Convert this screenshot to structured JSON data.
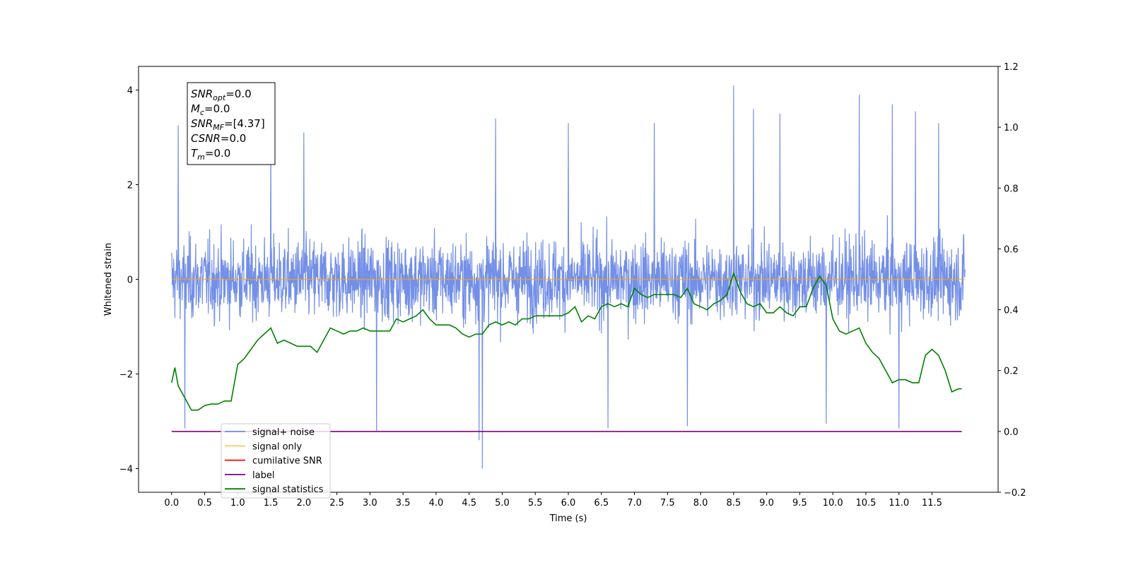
{
  "chart_data": {
    "type": "line",
    "xlabel": "Time (s)",
    "ylabel": "Whitened strain",
    "xlim": [
      -0.5,
      12.5
    ],
    "ylim": [
      -4.5,
      4.5
    ],
    "y2lim": [
      -0.2,
      1.2
    ],
    "x_ticks": [
      0.0,
      0.5,
      1.0,
      1.5,
      2.0,
      2.5,
      3.0,
      3.5,
      4.0,
      4.5,
      5.0,
      5.5,
      6.0,
      6.5,
      7.0,
      7.5,
      8.0,
      8.5,
      9.0,
      9.5,
      10.0,
      10.5,
      11.0,
      11.5
    ],
    "x_tick_labels": [
      "0.0",
      "0.5",
      "1.0",
      "1.5",
      "2.0",
      "2.5",
      "3.0",
      "3.5",
      "4.0",
      "4.5",
      "5.0",
      "5.5",
      "6.0",
      "6.5",
      "7.0",
      "7.5",
      "8.0",
      "8.5",
      "9.0",
      "9.5",
      "10.0",
      "10.5",
      "11.0",
      "11.5"
    ],
    "y_ticks": [
      -4,
      -2,
      0,
      2,
      4
    ],
    "y_tick_labels": [
      "−4",
      "−2",
      "0",
      "2",
      "4"
    ],
    "y2_ticks": [
      -0.2,
      0.0,
      0.2,
      0.4,
      0.6,
      0.8,
      1.0,
      1.2
    ],
    "y2_tick_labels": [
      "−0.2",
      "0.0",
      "0.2",
      "0.4",
      "0.6",
      "0.8",
      "1.0",
      "1.2"
    ],
    "legend_position": "lower-left",
    "series": [
      {
        "name": "signal+ noise",
        "color": "#6b89e6",
        "axis": "left",
        "x_range": [
          0.0,
          12.0
        ],
        "noise_sigma": 0.85,
        "extremes": [
          {
            "x": 0.1,
            "y": 3.25
          },
          {
            "x": 0.2,
            "y": -3.15
          },
          {
            "x": 1.5,
            "y": 2.95
          },
          {
            "x": 2.0,
            "y": 3.1
          },
          {
            "x": 3.1,
            "y": -3.2
          },
          {
            "x": 4.65,
            "y": -3.4
          },
          {
            "x": 4.7,
            "y": -4.0
          },
          {
            "x": 4.9,
            "y": 3.4
          },
          {
            "x": 6.0,
            "y": 3.3
          },
          {
            "x": 6.6,
            "y": -3.15
          },
          {
            "x": 7.3,
            "y": 3.3
          },
          {
            "x": 8.5,
            "y": 4.1
          },
          {
            "x": 8.8,
            "y": 3.6
          },
          {
            "x": 9.2,
            "y": 3.5
          },
          {
            "x": 10.4,
            "y": 3.9
          },
          {
            "x": 10.9,
            "y": 3.7
          },
          {
            "x": 11.0,
            "y": -3.15
          },
          {
            "x": 11.25,
            "y": 3.55
          },
          {
            "x": 11.6,
            "y": 3.3
          },
          {
            "x": 7.8,
            "y": -3.1
          },
          {
            "x": 9.9,
            "y": -3.05
          }
        ]
      },
      {
        "name": "signal only",
        "color": "#ffa500",
        "axis": "left",
        "x": [
          0.0,
          12.0
        ],
        "y": [
          0.0,
          0.0
        ]
      },
      {
        "name": "cumilative SNR",
        "color": "#ff0000",
        "axis": "right",
        "x": [],
        "y": []
      },
      {
        "name": "label",
        "color": "#800080",
        "axis": "right",
        "x": [
          0.0,
          11.95
        ],
        "y": [
          0.0,
          0.0
        ]
      },
      {
        "name": "signal statistics",
        "color": "#008000",
        "axis": "right",
        "x": [
          0.0,
          0.05,
          0.1,
          0.2,
          0.3,
          0.4,
          0.5,
          0.6,
          0.7,
          0.8,
          0.9,
          1.0,
          1.1,
          1.2,
          1.3,
          1.4,
          1.5,
          1.6,
          1.7,
          1.8,
          1.9,
          2.0,
          2.1,
          2.2,
          2.3,
          2.4,
          2.5,
          2.6,
          2.7,
          2.8,
          2.9,
          3.0,
          3.1,
          3.2,
          3.3,
          3.4,
          3.5,
          3.6,
          3.7,
          3.8,
          3.9,
          4.0,
          4.1,
          4.2,
          4.3,
          4.4,
          4.5,
          4.6,
          4.7,
          4.8,
          4.9,
          5.0,
          5.1,
          5.2,
          5.3,
          5.4,
          5.5,
          5.6,
          5.7,
          5.8,
          5.9,
          6.0,
          6.1,
          6.2,
          6.3,
          6.4,
          6.5,
          6.6,
          6.7,
          6.8,
          6.9,
          7.0,
          7.1,
          7.2,
          7.3,
          7.4,
          7.5,
          7.6,
          7.7,
          7.8,
          7.9,
          8.0,
          8.1,
          8.2,
          8.3,
          8.4,
          8.5,
          8.6,
          8.7,
          8.8,
          8.9,
          9.0,
          9.1,
          9.2,
          9.3,
          9.4,
          9.5,
          9.6,
          9.7,
          9.8,
          9.9,
          10.0,
          10.1,
          10.2,
          10.3,
          10.4,
          10.5,
          10.6,
          10.7,
          10.8,
          10.9,
          11.0,
          11.1,
          11.2,
          11.3,
          11.4,
          11.5,
          11.6,
          11.7,
          11.8,
          11.9,
          11.95
        ],
        "y": [
          0.16,
          0.21,
          0.15,
          0.11,
          0.07,
          0.07,
          0.085,
          0.09,
          0.09,
          0.1,
          0.1,
          0.22,
          0.24,
          0.27,
          0.3,
          0.32,
          0.34,
          0.29,
          0.3,
          0.29,
          0.28,
          0.28,
          0.28,
          0.26,
          0.3,
          0.34,
          0.33,
          0.32,
          0.33,
          0.33,
          0.34,
          0.33,
          0.33,
          0.33,
          0.33,
          0.37,
          0.36,
          0.37,
          0.38,
          0.4,
          0.37,
          0.35,
          0.35,
          0.35,
          0.34,
          0.32,
          0.31,
          0.32,
          0.32,
          0.35,
          0.36,
          0.35,
          0.36,
          0.35,
          0.37,
          0.37,
          0.38,
          0.38,
          0.38,
          0.38,
          0.38,
          0.39,
          0.41,
          0.36,
          0.38,
          0.37,
          0.41,
          0.42,
          0.41,
          0.42,
          0.41,
          0.47,
          0.45,
          0.44,
          0.45,
          0.45,
          0.45,
          0.45,
          0.44,
          0.47,
          0.42,
          0.41,
          0.4,
          0.42,
          0.43,
          0.45,
          0.52,
          0.46,
          0.42,
          0.41,
          0.42,
          0.39,
          0.39,
          0.41,
          0.39,
          0.38,
          0.41,
          0.41,
          0.47,
          0.51,
          0.48,
          0.37,
          0.33,
          0.32,
          0.33,
          0.34,
          0.29,
          0.26,
          0.24,
          0.2,
          0.16,
          0.17,
          0.17,
          0.16,
          0.16,
          0.25,
          0.27,
          0.25,
          0.2,
          0.13,
          0.14,
          0.14
        ]
      }
    ],
    "annotation": {
      "lines": [
        {
          "main": "SNR",
          "sub": "opt",
          "value": "=0.0"
        },
        {
          "main": "M",
          "sub": "c",
          "value": "=0.0"
        },
        {
          "main": "SNR",
          "sub": "MF",
          "value": "=[4.37]"
        },
        {
          "main": "CSNR",
          "sub": "",
          "value": "=0.0"
        },
        {
          "main": "T",
          "sub": "m",
          "value": "=0.0"
        }
      ]
    }
  }
}
